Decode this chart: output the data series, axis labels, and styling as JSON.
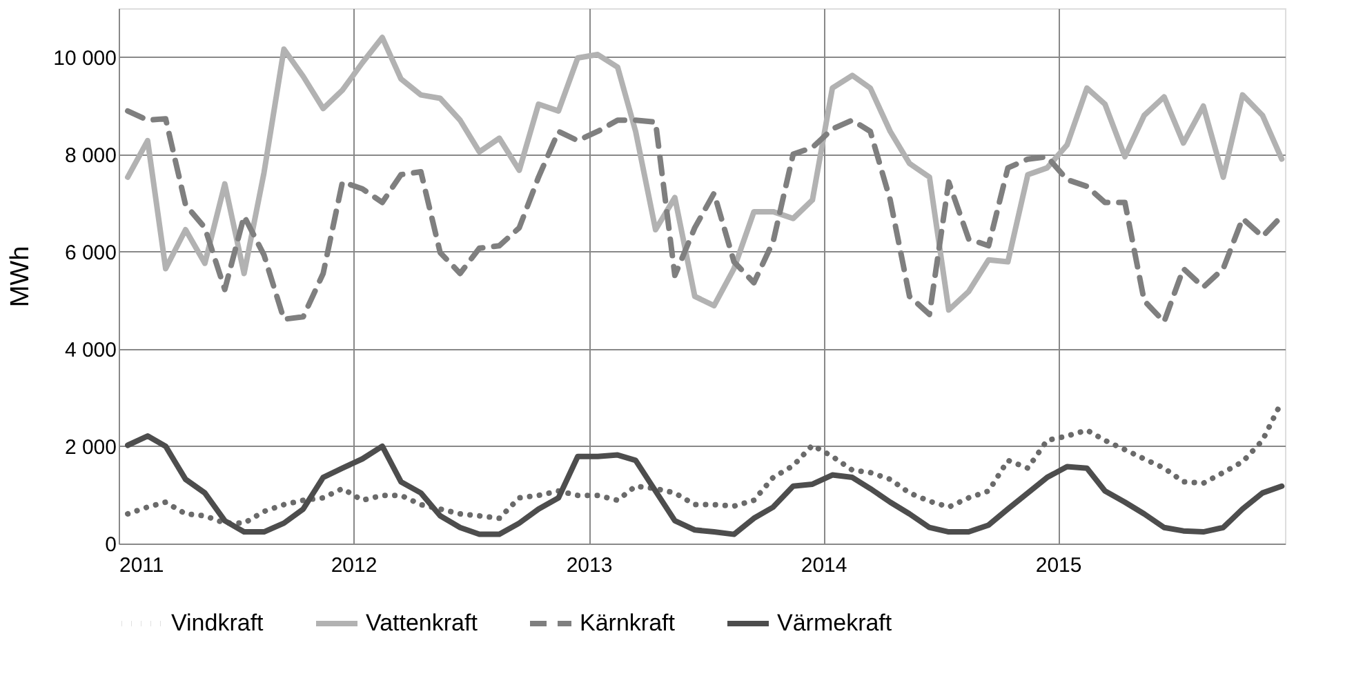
{
  "chart_data": {
    "type": "line",
    "ylabel": "MWh",
    "xlim": [
      "2011-01-01",
      "2015-12-20"
    ],
    "xticks": [
      "2011",
      "2012",
      "2013",
      "2014",
      "2015"
    ],
    "ylim": [
      0,
      11000
    ],
    "yticks": [
      {
        "value": 0,
        "label": "0"
      },
      {
        "value": 2000,
        "label": "2 000"
      },
      {
        "value": 4000,
        "label": "4 000"
      },
      {
        "value": 6000,
        "label": "6 000"
      },
      {
        "value": 8000,
        "label": "8 000"
      },
      {
        "value": 10000,
        "label": "10 000"
      }
    ],
    "grid": true,
    "legend": "bottom",
    "marker": "none",
    "x": [
      "2011-01-15",
      "2011-02-15",
      "2011-03-15",
      "2011-04-15",
      "2011-05-15",
      "2011-06-15",
      "2011-07-15",
      "2011-08-15",
      "2011-09-15",
      "2011-10-15",
      "2011-11-15",
      "2011-12-15",
      "2012-01-15",
      "2012-02-15",
      "2012-03-15",
      "2012-04-15",
      "2012-05-15",
      "2012-06-15",
      "2012-07-15",
      "2012-08-15",
      "2012-09-15",
      "2012-10-15",
      "2012-11-15",
      "2012-12-15",
      "2013-01-15",
      "2013-02-15",
      "2013-03-15",
      "2013-04-15",
      "2013-05-15",
      "2013-06-15",
      "2013-07-15",
      "2013-08-15",
      "2013-09-15",
      "2013-10-15",
      "2013-11-15",
      "2013-12-15",
      "2014-01-15",
      "2014-02-15",
      "2014-03-15",
      "2014-04-15",
      "2014-05-15",
      "2014-06-15",
      "2014-07-15",
      "2014-08-15",
      "2014-09-15",
      "2014-10-15",
      "2014-11-15",
      "2014-12-15",
      "2015-01-15",
      "2015-02-15",
      "2015-03-15",
      "2015-04-15",
      "2015-05-15",
      "2015-06-15",
      "2015-07-15",
      "2015-08-15",
      "2015-09-15",
      "2015-10-15",
      "2015-11-15",
      "2015-12-15"
    ],
    "series": [
      {
        "name": "Vindkraft",
        "color": "#6a6a6a",
        "line_style": "dotted",
        "values": [
          610,
          750,
          850,
          610,
          570,
          420,
          420,
          660,
          800,
          890,
          940,
          1130,
          890,
          990,
          990,
          800,
          710,
          610,
          570,
          520,
          940,
          990,
          1080,
          990,
          990,
          890,
          1180,
          1130,
          1040,
          800,
          800,
          770,
          890,
          1360,
          1600,
          2020,
          1790,
          1510,
          1460,
          1320,
          1040,
          870,
          750,
          940,
          1080,
          1710,
          1550,
          2120,
          2210,
          2330,
          2120,
          1930,
          1740,
          1550,
          1270,
          1240,
          1460,
          1680,
          2120,
          2920
        ]
      },
      {
        "name": "Vattenkraft",
        "color": "#b2b2b2",
        "line_style": "solid",
        "values": [
          7530,
          8280,
          5650,
          6450,
          5760,
          7390,
          5550,
          7620,
          10160,
          9600,
          8940,
          9320,
          9880,
          10400,
          9550,
          9220,
          9150,
          8700,
          8050,
          8330,
          7670,
          9030,
          8890,
          9980,
          10050,
          9790,
          8470,
          6450,
          7110,
          5080,
          4890,
          5650,
          6820,
          6820,
          6680,
          7060,
          9360,
          9620,
          9360,
          8470,
          7810,
          7530,
          4800,
          5180,
          5830,
          5790,
          7580,
          7720,
          8190,
          9360,
          9030,
          7950,
          8800,
          9180,
          8230,
          8990,
          7530,
          9220,
          8800,
          7900
        ]
      },
      {
        "name": "Kärnkraft",
        "color": "#7f7f7f",
        "line_style": "dashed",
        "values": [
          8890,
          8700,
          8730,
          6960,
          6490,
          5220,
          6730,
          5930,
          4610,
          4660,
          5550,
          7430,
          7290,
          7010,
          7580,
          7640,
          5980,
          5550,
          6070,
          6120,
          6490,
          7530,
          8470,
          8280,
          8470,
          8700,
          8700,
          8660,
          5510,
          6490,
          7200,
          5790,
          5360,
          6210,
          8000,
          8140,
          8520,
          8700,
          8470,
          7060,
          5080,
          4710,
          7430,
          6260,
          6120,
          7720,
          7900,
          7950,
          7480,
          7340,
          7010,
          7010,
          4990,
          4560,
          5650,
          5270,
          5650,
          6680,
          6310,
          6730
        ]
      },
      {
        "name": "Värmekraft",
        "color": "#4d4d4d",
        "line_style": "solid",
        "values": [
          2020,
          2210,
          2000,
          1320,
          1040,
          470,
          240,
          240,
          420,
          710,
          1360,
          1550,
          1740,
          2000,
          1270,
          1040,
          570,
          330,
          190,
          190,
          420,
          710,
          940,
          1790,
          1790,
          1820,
          1710,
          1080,
          470,
          280,
          240,
          190,
          520,
          750,
          1180,
          1220,
          1410,
          1360,
          1130,
          850,
          610,
          330,
          240,
          240,
          380,
          710,
          1040,
          1360,
          1580,
          1550,
          1080,
          850,
          610,
          330,
          260,
          240,
          330,
          710,
          1040,
          1180
        ]
      }
    ]
  }
}
